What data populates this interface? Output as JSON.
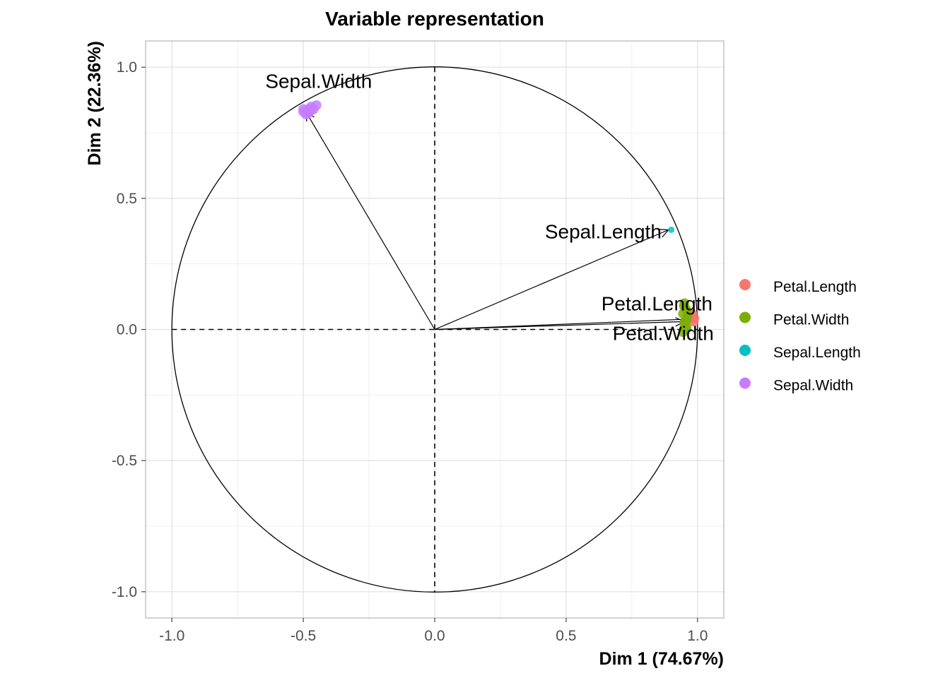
{
  "chart_data": {
    "type": "scatter",
    "title": "Variable representation",
    "xlabel": "Dim 1 (74.67%)",
    "ylabel": "Dim 2 (22.36%)",
    "xlim": [
      -1.1,
      1.1
    ],
    "ylim": [
      -1.1,
      1.1
    ],
    "xticks": [
      -1.0,
      -0.5,
      0.0,
      0.5,
      1.0
    ],
    "yticks": [
      -1.0,
      -0.5,
      0.0,
      0.5,
      1.0
    ],
    "xtick_labels": [
      "-1.0",
      "-0.5",
      "0.0",
      "0.5",
      "1.0"
    ],
    "ytick_labels": [
      "-1.0",
      "-0.5",
      "0.0",
      "0.5",
      "1.0"
    ],
    "grid": true,
    "legend_position": "right",
    "unit_circle": true,
    "reference_lines": [
      0,
      0
    ],
    "variables": [
      {
        "name": "Sepal.Width",
        "label": "Sepal.Width",
        "x": -0.49,
        "y": 0.83
      },
      {
        "name": "Sepal.Length",
        "label": "Sepal.Length",
        "x": 0.89,
        "y": 0.38
      },
      {
        "name": "Petal.Length",
        "label": "Petal.Length",
        "x": 0.98,
        "y": 0.04
      },
      {
        "name": "Petal.Width",
        "label": "Petal.Width",
        "x": 0.95,
        "y": 0.03
      }
    ],
    "series": [
      {
        "name": "Petal.Length",
        "color": "#F8766D",
        "points": [
          [
            0.98,
            0.04
          ],
          [
            0.975,
            0.05
          ],
          [
            0.985,
            0.03
          ],
          [
            0.98,
            0.06
          ],
          [
            0.972,
            0.045
          ],
          [
            0.988,
            0.042
          ]
        ]
      },
      {
        "name": "Petal.Width",
        "color": "#7CAE00",
        "points": [
          [
            0.95,
            0.1
          ],
          [
            0.955,
            0.08
          ],
          [
            0.945,
            0.06
          ],
          [
            0.96,
            0.04
          ],
          [
            0.95,
            0.02
          ],
          [
            0.955,
            0.0
          ],
          [
            0.945,
            -0.01
          ],
          [
            0.96,
            0.07
          ],
          [
            0.952,
            0.03
          ],
          [
            0.948,
            0.09
          ],
          [
            0.958,
            0.01
          ],
          [
            0.962,
            0.05
          ]
        ]
      },
      {
        "name": "Sepal.Length",
        "color": "#00BFC4",
        "points": [
          [
            0.9,
            0.38
          ]
        ]
      },
      {
        "name": "Sepal.Width",
        "color": "#C77CFF",
        "points": [
          [
            -0.49,
            0.83
          ],
          [
            -0.48,
            0.84
          ],
          [
            -0.5,
            0.84
          ],
          [
            -0.47,
            0.85
          ],
          [
            -0.45,
            0.855
          ],
          [
            -0.49,
            0.82
          ],
          [
            -0.5,
            0.83
          ],
          [
            -0.46,
            0.84
          ],
          [
            -0.48,
            0.825
          ],
          [
            -0.47,
            0.835
          ]
        ]
      }
    ],
    "legend": [
      "Petal.Length",
      "Petal.Width",
      "Sepal.Length",
      "Sepal.Width"
    ]
  }
}
